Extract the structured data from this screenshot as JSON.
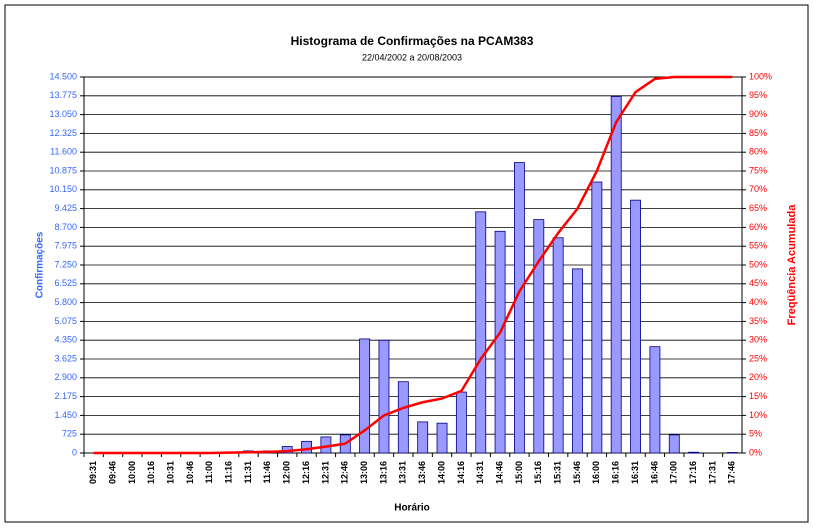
{
  "chart_data": {
    "type": "bar_line",
    "title": "Histograma de Confirmações na PCAM383",
    "subtitle": "22/04/2002 a 20/08/2003",
    "x_label": "Horário",
    "y_label": "Confirmações",
    "y2_label": "Freqüência Acumulada",
    "categories": [
      "09:31",
      "09:46",
      "10:00",
      "10:16",
      "10:31",
      "10:46",
      "11:00",
      "11:16",
      "11:31",
      "11:46",
      "12:00",
      "12:16",
      "12:31",
      "12:46",
      "13:00",
      "13:16",
      "13:31",
      "13:46",
      "14:00",
      "14:16",
      "14:31",
      "14:46",
      "15:00",
      "15:16",
      "15:31",
      "15:46",
      "16:00",
      "16:16",
      "16:31",
      "16:46",
      "17:00",
      "17:16",
      "17:31",
      "17:46"
    ],
    "series": [
      {
        "type": "bar",
        "color": "#9999ff",
        "values": [
          0,
          0,
          0,
          10,
          20,
          10,
          20,
          40,
          80,
          80,
          250,
          450,
          620,
          700,
          4400,
          4350,
          2750,
          1200,
          1150,
          2350,
          9300,
          8550,
          11200,
          9000,
          8300,
          7100,
          10450,
          13750,
          9750,
          4100,
          700,
          30,
          0,
          20
        ]
      },
      {
        "type": "line",
        "axis": "y2",
        "color": "#ff0000",
        "values": [
          0,
          0,
          0,
          0,
          0,
          0,
          0,
          0.1,
          0.2,
          0.3,
          0.5,
          1,
          1.7,
          2.5,
          6,
          10,
          12,
          13.5,
          14.5,
          16.5,
          25,
          32,
          43,
          51,
          58.5,
          65,
          75,
          88,
          96,
          99.5,
          100,
          100,
          100,
          100
        ]
      }
    ],
    "ylim": [
      0,
      14500
    ],
    "yticks": [
      0,
      725,
      {
        "value": 1450,
        "label": "1.450"
      },
      {
        "value": 2175,
        "label": "2.175"
      },
      {
        "value": 2900,
        "label": "2.900"
      },
      {
        "value": 3625,
        "label": "3.625"
      },
      {
        "value": 4350,
        "label": "4.350"
      },
      {
        "value": 5075,
        "label": "5.075"
      },
      {
        "value": 5800,
        "label": "5.800"
      },
      {
        "value": 6525,
        "label": "6.525"
      },
      {
        "value": 7250,
        "label": "7.250"
      },
      {
        "value": 7975,
        "label": "7.975"
      },
      {
        "value": 8700,
        "label": "8.700"
      },
      {
        "value": 9425,
        "label": "9.425"
      },
      {
        "value": 10150,
        "label": "10.150"
      },
      {
        "value": 10875,
        "label": "10.875"
      },
      {
        "value": 11600,
        "label": "11.600"
      },
      {
        "value": 12325,
        "label": "12.325"
      },
      {
        "value": 13050,
        "label": "13.050"
      },
      {
        "value": 13775,
        "label": "13.775"
      },
      {
        "value": 14500,
        "label": "14.500"
      }
    ],
    "y2lim": [
      0,
      100
    ],
    "y2ticks": [
      {
        "value": 0,
        "label": "0%"
      },
      {
        "value": 5,
        "label": "5%"
      },
      {
        "value": 10,
        "label": "10%"
      },
      {
        "value": 15,
        "label": "15%"
      },
      {
        "value": 20,
        "label": "20%"
      },
      {
        "value": 25,
        "label": "25%"
      },
      {
        "value": 30,
        "label": "30%"
      },
      {
        "value": 35,
        "label": "35%"
      },
      {
        "value": 40,
        "label": "40%"
      },
      {
        "value": 45,
        "label": "45%"
      },
      {
        "value": 50,
        "label": "50%"
      },
      {
        "value": 55,
        "label": "55%"
      },
      {
        "value": 60,
        "label": "60%"
      },
      {
        "value": 65,
        "label": "65%"
      },
      {
        "value": 70,
        "label": "70%"
      },
      {
        "value": 75,
        "label": "75%"
      },
      {
        "value": 80,
        "label": "80%"
      },
      {
        "value": 85,
        "label": "85%"
      },
      {
        "value": 90,
        "label": "90%"
      },
      {
        "value": 95,
        "label": "95%"
      },
      {
        "value": 100,
        "label": "100%"
      }
    ],
    "grid": true
  }
}
